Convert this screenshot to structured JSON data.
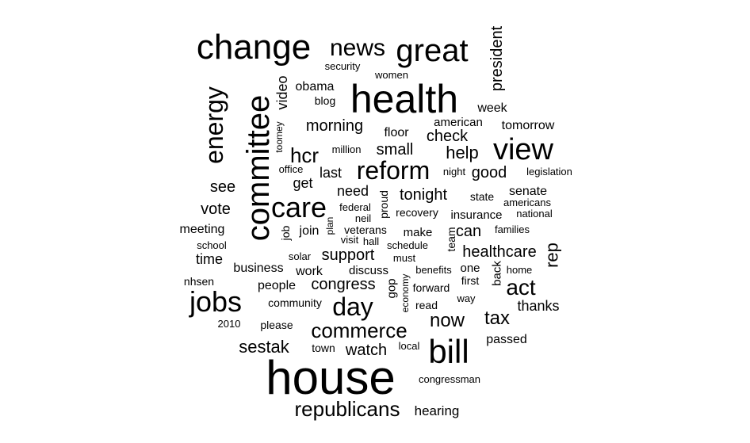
{
  "chart_data": {
    "type": "wordcloud",
    "words": [
      {
        "text": "house",
        "rotated": false
      },
      {
        "text": "health",
        "rotated": false
      },
      {
        "text": "change",
        "rotated": false
      },
      {
        "text": "committee",
        "rotated": true
      },
      {
        "text": "great",
        "rotated": false
      },
      {
        "text": "bill",
        "rotated": false
      },
      {
        "text": "jobs",
        "rotated": false
      },
      {
        "text": "view",
        "rotated": false
      },
      {
        "text": "care",
        "rotated": false
      },
      {
        "text": "reform",
        "rotated": false
      },
      {
        "text": "energy",
        "rotated": true
      },
      {
        "text": "news",
        "rotated": false
      },
      {
        "text": "day",
        "rotated": false
      },
      {
        "text": "republicans",
        "rotated": false
      },
      {
        "text": "commerce",
        "rotated": false
      },
      {
        "text": "act",
        "rotated": false
      },
      {
        "text": "hcr",
        "rotated": false
      },
      {
        "text": "now",
        "rotated": false
      },
      {
        "text": "sestak",
        "rotated": false
      },
      {
        "text": "tax",
        "rotated": false
      },
      {
        "text": "help",
        "rotated": false
      },
      {
        "text": "morning",
        "rotated": false
      },
      {
        "text": "president",
        "rotated": true
      },
      {
        "text": "rep",
        "rotated": true
      },
      {
        "text": "healthcare",
        "rotated": false
      },
      {
        "text": "support",
        "rotated": false
      },
      {
        "text": "congress",
        "rotated": false
      },
      {
        "text": "watch",
        "rotated": false
      },
      {
        "text": "tonight",
        "rotated": false
      },
      {
        "text": "video",
        "rotated": true
      },
      {
        "text": "small",
        "rotated": false
      },
      {
        "text": "check",
        "rotated": false
      },
      {
        "text": "see",
        "rotated": false
      },
      {
        "text": "vote",
        "rotated": false
      },
      {
        "text": "good",
        "rotated": false
      },
      {
        "text": "last",
        "rotated": false
      },
      {
        "text": "need",
        "rotated": false
      },
      {
        "text": "thanks",
        "rotated": false
      },
      {
        "text": "can",
        "rotated": false
      },
      {
        "text": "time",
        "rotated": false
      },
      {
        "text": "meeting",
        "rotated": false
      },
      {
        "text": "get",
        "rotated": false
      },
      {
        "text": "floor",
        "rotated": false
      },
      {
        "text": "week",
        "rotated": false
      },
      {
        "text": "tomorrow",
        "rotated": false
      },
      {
        "text": "obama",
        "rotated": false
      },
      {
        "text": "senate",
        "rotated": false
      },
      {
        "text": "people",
        "rotated": false
      },
      {
        "text": "work",
        "rotated": false
      },
      {
        "text": "join",
        "rotated": false
      },
      {
        "text": "passed",
        "rotated": false
      },
      {
        "text": "business",
        "rotated": false
      },
      {
        "text": "american",
        "rotated": false
      },
      {
        "text": "insurance",
        "rotated": false
      },
      {
        "text": "make",
        "rotated": false
      },
      {
        "text": "discuss",
        "rotated": false
      },
      {
        "text": "gop",
        "rotated": true
      },
      {
        "text": "back",
        "rotated": true
      },
      {
        "text": "one",
        "rotated": false
      },
      {
        "text": "first",
        "rotated": false
      },
      {
        "text": "read",
        "rotated": false
      },
      {
        "text": "forward",
        "rotated": false
      },
      {
        "text": "blog",
        "rotated": false
      },
      {
        "text": "nhsen",
        "rotated": false
      },
      {
        "text": "recovery",
        "rotated": false
      },
      {
        "text": "veterans",
        "rotated": false
      },
      {
        "text": "state",
        "rotated": false
      },
      {
        "text": "proud",
        "rotated": true
      },
      {
        "text": "team",
        "rotated": true
      },
      {
        "text": "job",
        "rotated": true
      },
      {
        "text": "town",
        "rotated": false
      },
      {
        "text": "community",
        "rotated": false
      },
      {
        "text": "please",
        "rotated": false
      },
      {
        "text": "women",
        "rotated": false
      },
      {
        "text": "security",
        "rotated": false
      },
      {
        "text": "million",
        "rotated": false
      },
      {
        "text": "office",
        "rotated": false
      },
      {
        "text": "legislation",
        "rotated": false
      },
      {
        "text": "night",
        "rotated": false
      },
      {
        "text": "americans",
        "rotated": false
      },
      {
        "text": "national",
        "rotated": false
      },
      {
        "text": "families",
        "rotated": false
      },
      {
        "text": "home",
        "rotated": false
      },
      {
        "text": "way",
        "rotated": false
      },
      {
        "text": "federal",
        "rotated": false
      },
      {
        "text": "neil",
        "rotated": false
      },
      {
        "text": "visit",
        "rotated": false
      },
      {
        "text": "hall",
        "rotated": false
      },
      {
        "text": "schedule",
        "rotated": false
      },
      {
        "text": "must",
        "rotated": false
      },
      {
        "text": "benefits",
        "rotated": false
      },
      {
        "text": "school",
        "rotated": false
      },
      {
        "text": "solar",
        "rotated": false
      },
      {
        "text": "local",
        "rotated": false
      },
      {
        "text": "congressman",
        "rotated": false
      },
      {
        "text": "hearing",
        "rotated": false
      },
      {
        "text": "2010",
        "rotated": false
      },
      {
        "text": "toomey",
        "rotated": true
      },
      {
        "text": "plan",
        "rotated": true
      },
      {
        "text": "economy",
        "rotated": true
      }
    ]
  }
}
